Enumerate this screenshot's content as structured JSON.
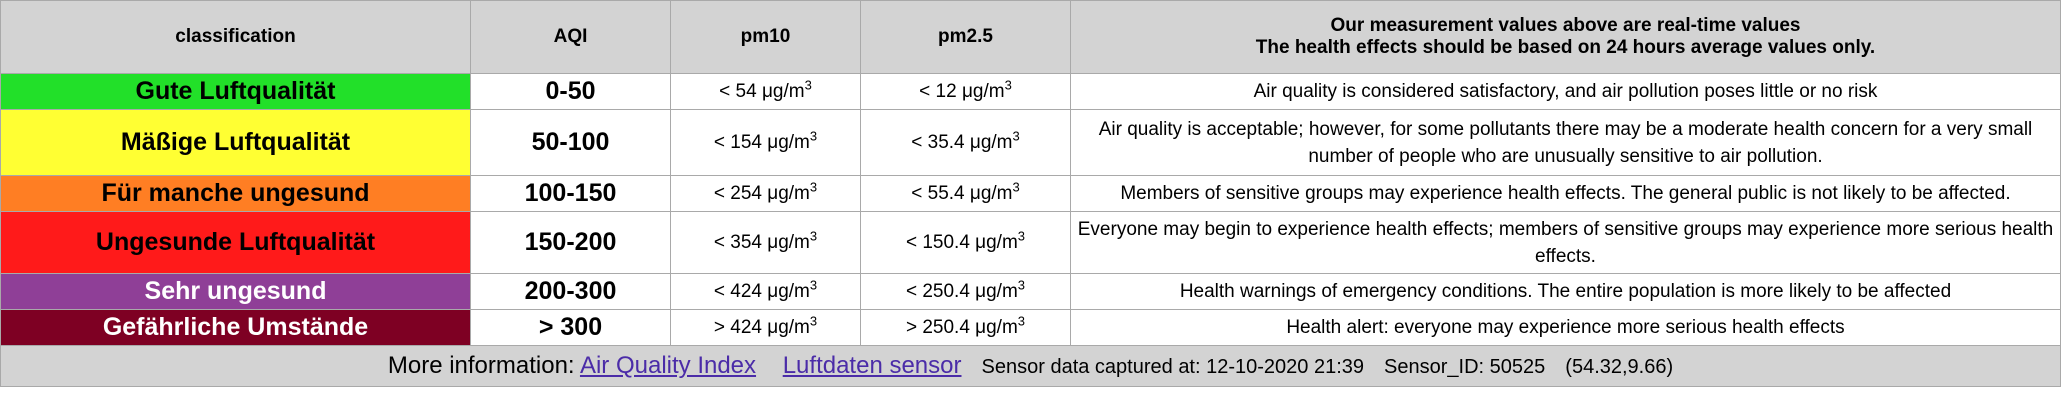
{
  "header": {
    "classification": "classification",
    "aqi": "AQI",
    "pm10": "pm10",
    "pm25": "pm2.5",
    "note_line1": "Our measurement values above are real-time values",
    "note_line2": "The health effects should be based on 24 hours average values only."
  },
  "unit": "μg/m",
  "unit_sup": "3",
  "rows": [
    {
      "classification": "Gute Luftqualität",
      "aqi": "0-50",
      "pm10": "< 54",
      "pm25": "< 12",
      "effect": "Air quality is considered satisfactory, and air pollution poses little or no risk",
      "color": "#22e029",
      "text_color": "#000000"
    },
    {
      "classification": "Mäßige Luftqualität",
      "aqi": "50-100",
      "pm10": "< 154",
      "pm25": "< 35.4",
      "effect": "Air quality is acceptable; however, for some pollutants there may be a moderate health concern for a very small number of people who are unusually sensitive to air pollution.",
      "color": "#ffff33",
      "text_color": "#000000"
    },
    {
      "classification": "Für manche ungesund",
      "aqi": "100-150",
      "pm10": "< 254",
      "pm25": "< 55.4",
      "effect": "Members of sensitive groups may experience health effects. The general public is not likely to be affected.",
      "color": "#ff7e23",
      "text_color": "#000000"
    },
    {
      "classification": "Ungesunde Luftqualität",
      "aqi": "150-200",
      "pm10": "< 354",
      "pm25": "< 150.4",
      "effect": "Everyone may begin to experience health effects; members of sensitive groups may experience more serious health effects.",
      "color": "#ff1a1a",
      "text_color": "#000000"
    },
    {
      "classification": "Sehr ungesund",
      "aqi": "200-300",
      "pm10": "< 424",
      "pm25": "< 250.4",
      "effect": "Health warnings of emergency conditions. The entire population is more likely to be affected",
      "color": "#8f3f97",
      "text_color": "#ffffff"
    },
    {
      "classification": "Gefährliche Umstände",
      "aqi": "> 300",
      "pm10": "> 424",
      "pm25": "> 250.4",
      "effect": "Health alert: everyone may experience more serious health effects",
      "color": "#7e0023",
      "text_color": "#ffffff"
    }
  ],
  "footer": {
    "label": "More information:",
    "link_aqi": "Air Quality Index",
    "link_sensor": "Luftdaten sensor",
    "captured": "Sensor data captured at: 12-10-2020 21:39",
    "sensor_id": "Sensor_ID: 50525",
    "coords": "(54.32,9.66)"
  }
}
